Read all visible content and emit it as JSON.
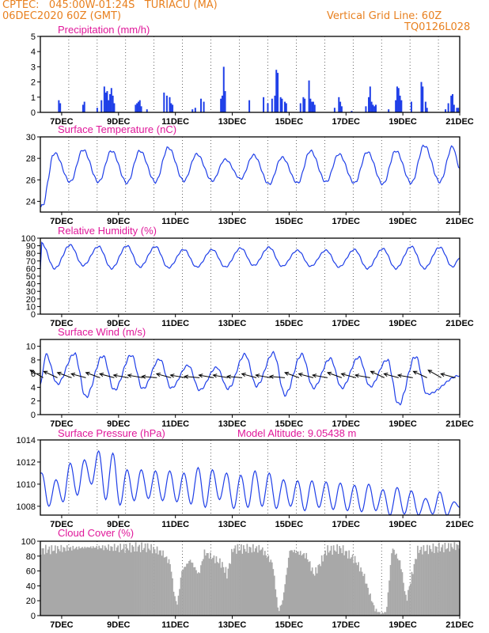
{
  "header": {
    "line1": "CPTEC:   045:00W-01:24S   TURIACU (MA)",
    "line2": "06DEC2020 60Z (GMT)",
    "grid_label": "Vertical Grid Line: 60Z",
    "run_id": "TQ0126L028"
  },
  "colors": {
    "header": "#e8801f",
    "title": "#e0189a",
    "series": "#1f3fe8",
    "cloud": "#a8a8a8",
    "arrows": "#000000"
  },
  "chart_data": [
    {
      "id": "precip",
      "type": "bar",
      "title": "Precipitation (mm/h)",
      "xticks": [
        "7DEC",
        "9DEC",
        "11DEC",
        "13DEC",
        "15DEC",
        "17DEC",
        "19DEC",
        "21DEC"
      ],
      "ylim": [
        0,
        5
      ],
      "yticks": [
        0,
        1,
        2,
        3,
        4,
        5
      ],
      "x_start_day": 6.25,
      "x_end_day": 21,
      "bars": [
        [
          6.9,
          0.8
        ],
        [
          6.95,
          0.6
        ],
        [
          7.75,
          0.5
        ],
        [
          7.8,
          0.7
        ],
        [
          8.25,
          0.3
        ],
        [
          8.4,
          0.8
        ],
        [
          8.5,
          1.7
        ],
        [
          8.55,
          1.3
        ],
        [
          8.6,
          1.4
        ],
        [
          8.65,
          0.8
        ],
        [
          8.7,
          1.2
        ],
        [
          8.75,
          1.6
        ],
        [
          8.8,
          1.1
        ],
        [
          8.85,
          0.6
        ],
        [
          9.6,
          0.5
        ],
        [
          9.65,
          0.6
        ],
        [
          9.7,
          0.7
        ],
        [
          9.75,
          0.8
        ],
        [
          9.8,
          0.4
        ],
        [
          10.0,
          0.2
        ],
        [
          10.6,
          1.3
        ],
        [
          10.7,
          1.1
        ],
        [
          10.8,
          1.0
        ],
        [
          10.85,
          0.6
        ],
        [
          10.9,
          0.5
        ],
        [
          11.6,
          0.2
        ],
        [
          11.7,
          0.3
        ],
        [
          11.9,
          0.9
        ],
        [
          12.0,
          0.7
        ],
        [
          12.6,
          0.9
        ],
        [
          12.65,
          1.1
        ],
        [
          12.7,
          3.0
        ],
        [
          12.75,
          1.4
        ],
        [
          13.6,
          0.8
        ],
        [
          14.1,
          1.0
        ],
        [
          14.25,
          0.6
        ],
        [
          14.4,
          0.9
        ],
        [
          14.5,
          1.1
        ],
        [
          14.55,
          2.8
        ],
        [
          14.6,
          2.6
        ],
        [
          14.7,
          1.0
        ],
        [
          14.75,
          0.9
        ],
        [
          14.85,
          0.7
        ],
        [
          14.9,
          0.6
        ],
        [
          15.4,
          0.6
        ],
        [
          15.5,
          1.0
        ],
        [
          15.55,
          0.9
        ],
        [
          15.7,
          2.1
        ],
        [
          15.75,
          0.9
        ],
        [
          15.8,
          0.7
        ],
        [
          15.85,
          0.7
        ],
        [
          15.9,
          0.5
        ],
        [
          16.6,
          0.3
        ],
        [
          16.75,
          1.0
        ],
        [
          16.8,
          0.7
        ],
        [
          16.85,
          0.4
        ],
        [
          17.2,
          0.1
        ],
        [
          17.7,
          0.4
        ],
        [
          17.8,
          1.0
        ],
        [
          17.85,
          1.7
        ],
        [
          17.9,
          0.7
        ],
        [
          17.95,
          0.5
        ],
        [
          18.0,
          0.4
        ],
        [
          18.05,
          0.5
        ],
        [
          18.5,
          0.2
        ],
        [
          18.75,
          0.8
        ],
        [
          18.8,
          1.7
        ],
        [
          18.85,
          1.6
        ],
        [
          18.9,
          1.1
        ],
        [
          18.95,
          0.8
        ],
        [
          19.3,
          0.7
        ],
        [
          19.65,
          2.0
        ],
        [
          19.7,
          1.7
        ],
        [
          19.8,
          0.7
        ],
        [
          19.85,
          0.3
        ],
        [
          20.5,
          0.2
        ],
        [
          20.6,
          0.6
        ],
        [
          20.7,
          1.1
        ],
        [
          20.75,
          1.2
        ],
        [
          20.8,
          0.5
        ],
        [
          20.9,
          0.3
        ],
        [
          20.95,
          0.3
        ]
      ]
    },
    {
      "id": "temp",
      "type": "line",
      "title": "Surface Temperature (nC)",
      "xticks": [
        "7DEC",
        "9DEC",
        "11DEC",
        "13DEC",
        "15DEC",
        "17DEC",
        "19DEC",
        "21DEC"
      ],
      "ylim": [
        23,
        30
      ],
      "yticks": [
        24,
        26,
        28,
        30
      ],
      "x_start_day": 6.25,
      "x_end_day": 21,
      "daily_max": [
        28.5,
        28.8,
        28.7,
        28.7,
        29.0,
        28.4,
        27.9,
        28.3,
        28.1,
        28.7,
        28.4,
        28.6,
        28.7,
        29.2,
        29.1
      ],
      "daily_min": [
        23.5,
        25.8,
        25.8,
        25.7,
        25.8,
        25.9,
        25.9,
        26.1,
        25.6,
        25.7,
        25.8,
        25.7,
        25.6,
        25.7,
        25.8
      ],
      "end_value": 27.1
    },
    {
      "id": "rh",
      "type": "line",
      "title": "Relative Humidity (%)",
      "xticks": [
        "7DEC",
        "9DEC",
        "11DEC",
        "13DEC",
        "15DEC",
        "17DEC",
        "19DEC",
        "21DEC"
      ],
      "ylim": [
        0,
        100
      ],
      "yticks": [
        0,
        10,
        20,
        30,
        40,
        50,
        60,
        70,
        80,
        90,
        100
      ],
      "x_start_day": 6.25,
      "x_end_day": 21,
      "daily_max": [
        93,
        91,
        89,
        90,
        89,
        85,
        85,
        87,
        88,
        84,
        84,
        85,
        86,
        89,
        88
      ],
      "daily_min": [
        60,
        64,
        60,
        62,
        61,
        62,
        62,
        64,
        63,
        63,
        62,
        60,
        60,
        60,
        62
      ],
      "end_value": 74
    },
    {
      "id": "wind",
      "type": "line",
      "title": "Surface Wind (m/s)",
      "xticks": [
        "7DEC",
        "9DEC",
        "11DEC",
        "13DEC",
        "15DEC",
        "17DEC",
        "19DEC",
        "21DEC"
      ],
      "ylim": [
        0,
        11
      ],
      "yticks": [
        0,
        2,
        4,
        6,
        8,
        10
      ],
      "x_start_day": 6.25,
      "x_end_day": 21,
      "daily_max": [
        8.8,
        8.9,
        8.6,
        8.7,
        8.1,
        7.2,
        6.9,
        8.8,
        9.0,
        8.8,
        8.2,
        8.4,
        8.0,
        8.5
      ],
      "daily_min": [
        4.5,
        2.6,
        3.6,
        3.8,
        3.9,
        3.6,
        3.8,
        4.2,
        2.9,
        3.9,
        3.9,
        4.1,
        1.5,
        3.0
      ],
      "end_value": 5.7,
      "arrow_angles": [
        150,
        155,
        160,
        165,
        160,
        165,
        170,
        170,
        175,
        165,
        170,
        175,
        170,
        170,
        175,
        165,
        170,
        175,
        160,
        165,
        170,
        160,
        165,
        170,
        155,
        165,
        170,
        155,
        150,
        165
      ]
    },
    {
      "id": "pres",
      "type": "line",
      "title": "Surface Pressure (hPa)",
      "xticks": [
        "7DEC",
        "9DEC",
        "11DEC",
        "13DEC",
        "15DEC",
        "17DEC",
        "19DEC",
        "21DEC"
      ],
      "ylim": [
        1007.2,
        1014
      ],
      "yticks": [
        1008,
        1010,
        1012,
        1014
      ],
      "x_start_day": 6.25,
      "x_end_day": 21,
      "semi_max": [
        1011.0,
        1010.4,
        1011.9,
        1012.2,
        1013.0,
        1012.8,
        1011.3,
        1011.3,
        1011.2,
        1011.2,
        1011.0,
        1011.5,
        1011.3,
        1011.0,
        1010.8,
        1011.2,
        1011.0,
        1010.4,
        1010.3,
        1010.3,
        1010.2,
        1010.1,
        1009.9,
        1010.0,
        1009.5,
        1009.7,
        1009.4,
        1008.7,
        1009.3,
        1008.4
      ],
      "semi_min": [
        1008.2,
        1008.0,
        1008.4,
        1009.0,
        1010.0,
        1008.6,
        1008.1,
        1008.5,
        1008.7,
        1008.5,
        1008.4,
        1008.2,
        1007.9,
        1008.6,
        1007.8,
        1007.9,
        1008.0,
        1007.8,
        1008.0,
        1007.6,
        1007.9,
        1007.7,
        1007.6,
        1007.5,
        1007.6,
        1007.2,
        1007.3,
        1007.2,
        1007.3,
        1007.2
      ],
      "model_altitude_label": "Model Altitude: 9.05438 m"
    },
    {
      "id": "cloud",
      "type": "bar",
      "title": "Cloud Cover (%)",
      "xticks": [
        "7DEC",
        "9DEC",
        "11DEC",
        "13DEC",
        "15DEC",
        "17DEC",
        "19DEC",
        "21DEC"
      ],
      "ylim": [
        0,
        100
      ],
      "yticks": [
        0,
        20,
        40,
        60,
        80,
        100
      ],
      "x_start_day": 6.25,
      "x_end_day": 21,
      "profile": [
        [
          6.25,
          88
        ],
        [
          7.0,
          90
        ],
        [
          8.0,
          92
        ],
        [
          9.0,
          91
        ],
        [
          10.0,
          92
        ],
        [
          10.5,
          85
        ],
        [
          10.8,
          70
        ],
        [
          10.95,
          25
        ],
        [
          11.05,
          15
        ],
        [
          11.2,
          60
        ],
        [
          11.5,
          75
        ],
        [
          11.8,
          55
        ],
        [
          12.0,
          85
        ],
        [
          12.3,
          78
        ],
        [
          12.6,
          70
        ],
        [
          12.8,
          55
        ],
        [
          13.0,
          90
        ],
        [
          13.5,
          90
        ],
        [
          14.0,
          90
        ],
        [
          14.4,
          70
        ],
        [
          14.6,
          5
        ],
        [
          14.75,
          20
        ],
        [
          15.0,
          88
        ],
        [
          15.3,
          85
        ],
        [
          15.6,
          80
        ],
        [
          15.85,
          55
        ],
        [
          16.0,
          65
        ],
        [
          16.3,
          88
        ],
        [
          16.8,
          90
        ],
        [
          17.3,
          75
        ],
        [
          17.6,
          55
        ],
        [
          17.8,
          30
        ],
        [
          18.0,
          8
        ],
        [
          18.2,
          3
        ],
        [
          18.4,
          5
        ],
        [
          18.6,
          92
        ],
        [
          18.9,
          70
        ],
        [
          19.1,
          20
        ],
        [
          19.3,
          55
        ],
        [
          19.5,
          88
        ],
        [
          20.0,
          90
        ],
        [
          20.5,
          92
        ],
        [
          21.0,
          94
        ]
      ]
    }
  ]
}
